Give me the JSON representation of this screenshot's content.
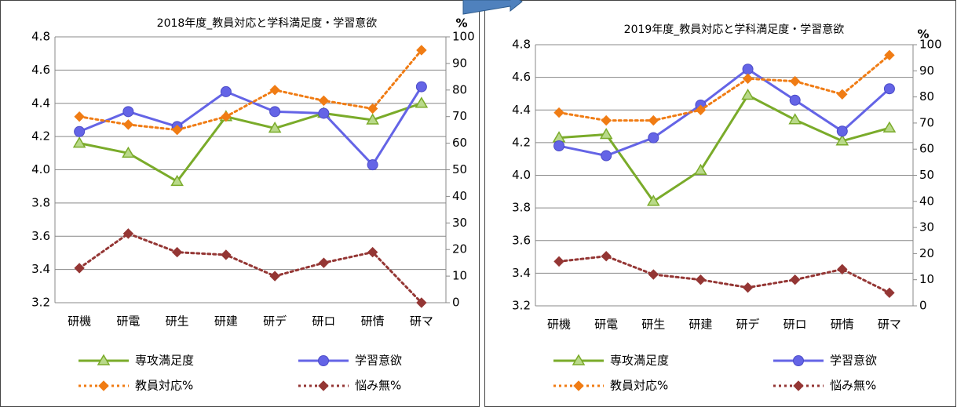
{
  "chart_data": [
    {
      "type": "line",
      "title": "2018年度_教員対応と学科満足度・学習意欲",
      "y2label": "%",
      "categories": [
        "研機",
        "研電",
        "研生",
        "研建",
        "研デ",
        "研ロ",
        "研情",
        "研マ"
      ],
      "ylim": [
        3.2,
        4.8
      ],
      "yticks": [
        3.2,
        3.4,
        3.6,
        3.8,
        {
          "value": 4,
          "label": "4.0"
        },
        4.2,
        4.4,
        4.6,
        4.8
      ],
      "y2lim": [
        0,
        100
      ],
      "y2ticks": [
        0,
        10,
        20,
        30,
        40,
        50,
        60,
        70,
        80,
        90,
        100
      ],
      "grid": true,
      "series": [
        {
          "name": "専攻満足度",
          "color": "#7aab2a",
          "marker": "triangle",
          "dash": "solid",
          "values": [
            4.16,
            4.1,
            3.93,
            4.32,
            4.25,
            4.34,
            4.3,
            4.4
          ]
        },
        {
          "name": "学習意欲",
          "color": "#6464e6",
          "marker": "circle",
          "dash": "solid",
          "values": [
            4.23,
            4.35,
            4.26,
            4.47,
            4.35,
            4.34,
            4.03,
            4.5
          ]
        },
        {
          "name": "教員対応%",
          "color": "#f07c14",
          "marker": "diamond",
          "dash": "dotted",
          "axis": "y2",
          "values": [
            70,
            67,
            65,
            70,
            80,
            76,
            73,
            95
          ]
        },
        {
          "name": "悩み無%",
          "color": "#943634",
          "marker": "diamond",
          "dash": "dotted",
          "axis": "y2",
          "values": [
            13,
            26,
            19,
            18,
            10,
            15,
            19,
            0
          ]
        }
      ]
    },
    {
      "type": "line",
      "title": "2019年度_教員対応と学科満足度・学習意欲",
      "y2label": "%",
      "categories": [
        "研機",
        "研電",
        "研生",
        "研建",
        "研デ",
        "研ロ",
        "研情",
        "研マ"
      ],
      "ylim": [
        3.2,
        4.8
      ],
      "yticks": [
        3.2,
        3.4,
        3.6,
        3.8,
        {
          "value": 4,
          "label": "4.0"
        },
        4.2,
        4.4,
        4.6,
        4.8
      ],
      "y2lim": [
        0,
        100
      ],
      "y2ticks": [
        0,
        10,
        20,
        30,
        40,
        50,
        60,
        70,
        80,
        90,
        100
      ],
      "grid": true,
      "series": [
        {
          "name": "専攻満足度",
          "color": "#7aab2a",
          "marker": "triangle",
          "dash": "solid",
          "values": [
            4.23,
            4.25,
            3.84,
            4.03,
            4.49,
            4.34,
            4.21,
            4.29
          ]
        },
        {
          "name": "学習意欲",
          "color": "#6464e6",
          "marker": "circle",
          "dash": "solid",
          "values": [
            4.18,
            4.12,
            4.23,
            4.43,
            4.65,
            4.46,
            4.27,
            4.53
          ]
        },
        {
          "name": "教員対応%",
          "color": "#f07c14",
          "marker": "diamond",
          "dash": "dotted",
          "axis": "y2",
          "values": [
            74,
            71,
            71,
            75,
            87,
            86,
            81,
            96
          ]
        },
        {
          "name": "悩み無%",
          "color": "#943634",
          "marker": "diamond",
          "dash": "dotted",
          "axis": "y2",
          "values": [
            17,
            19,
            12,
            10,
            7,
            10,
            14,
            5
          ]
        }
      ]
    }
  ]
}
